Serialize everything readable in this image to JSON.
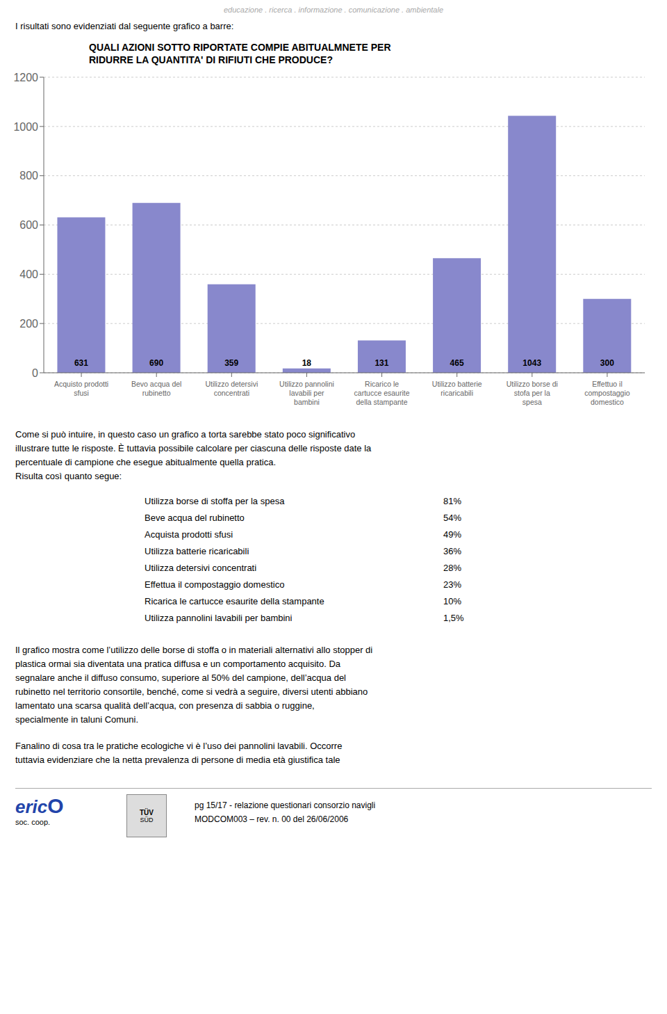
{
  "chart_data": {
    "type": "bar",
    "title": "QUALI AZIONI SOTTO RIPORTATE COMPIE ABITUALMNETE PER\nRIDURRE LA QUANTITA' DI RIFIUTI CHE PRODUCE?",
    "categories": [
      "Acquisto prodotti\nsfusi",
      "Bevo acqua del\nrubinetto",
      "Utilizzo detersivi\nconcentrati",
      "Utilizzo pannolini\nlavabili per\nbambini",
      "Ricarico le\ncartucce esaurite\ndella stampante",
      "Utilizzo batterie\nricaricabili",
      "Utilizzo borse di\nstofa per la\nspesa",
      "Effettuo il\ncompostaggio\ndomestico"
    ],
    "values": [
      631,
      690,
      359,
      18,
      131,
      465,
      1043,
      300
    ],
    "color": "#8888cc",
    "ylim": [
      0,
      1200
    ],
    "yticks": [
      0,
      200,
      400,
      600,
      800,
      1000,
      1200
    ],
    "grid": true,
    "data_labels": true
  },
  "header_text": "educazione . ricerca . informazione . comunicazione . ambientale",
  "intro_text": "I risultati sono evidenziati dal seguente grafico a barre:",
  "body_texts": [
    "Come si può intuire, in questo caso un grafico a torta sarebbe stato poco significativo",
    "illustrare tutte le risposte. È tuttavia possibile calcolare per ciascuna delle risposte date la",
    "percentuale di campione che esegue abitualmente quella pratica.",
    "Risulta così quanto segue:"
  ],
  "list_items": [
    [
      "Utilizza borse di stoffa per la spesa",
      "81%"
    ],
    [
      "Beve acqua del rubinetto",
      "54%"
    ],
    [
      "Acquista prodotti sfusi",
      "49%"
    ],
    [
      "Utilizza batterie ricaricabili",
      "36%"
    ],
    [
      "Utilizza detersivi concentrati",
      "28%"
    ],
    [
      "Effettua il compostaggio domestico",
      "23%"
    ],
    [
      "Ricarica le cartucce esaurite della stampante",
      "10%"
    ],
    [
      "Utilizza pannolini lavabili per bambini",
      "1,5%"
    ]
  ],
  "footer_paragraphs": [
    [
      "Il grafico mostra come l’utilizzo delle borse di stoffa o in materiali alternativi allo stopper di",
      "plastica ormai sia diventata una pratica diffusa e un comportamento acquisito. Da",
      "segnalare anche il diffuso consumo, superiore al 50% del campione, dell’acqua del",
      "rubinetto nel territorio consortile, benché, come si vedrà a seguire, diversi utenti abbiano",
      "lamentato una scarsa qualità dell’acqua, con presenza di sabbia o ruggine,",
      "specialmente in taluni Comuni."
    ],
    [
      "Fanalino di cosa tra le pratiche ecologiche vi è l’uso dei pannolini lavabili. Occorre",
      "tuttavia evidenziare che la netta prevalenza di persone di media età giustifica tale"
    ]
  ],
  "logo_texts": [
    "eric",
    "O",
    "soc. coop."
  ],
  "badge_texts": [
    "TÜV",
    "SÜD"
  ],
  "page_text": "pg 15/17 - relazione questionari consorzio navigli",
  "page_text2": "MODCOM003 – rev. n. 00 del 26/06/2006"
}
